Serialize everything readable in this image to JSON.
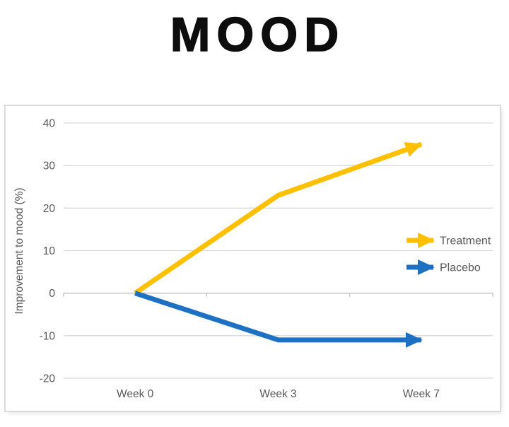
{
  "title": "MOOD",
  "chart_data": {
    "type": "line",
    "title": "MOOD",
    "categories": [
      "Week 0",
      "Week 3",
      "Week 7"
    ],
    "series": [
      {
        "name": "Treatment",
        "values": [
          0,
          23,
          35
        ],
        "color": "#FFC000"
      },
      {
        "name": "Placebo",
        "values": [
          0,
          -11,
          -11
        ],
        "color": "#1D70C2"
      }
    ],
    "xlabel": "",
    "ylabel": "Improvement to mood (%)",
    "ylim": [
      -20,
      40
    ],
    "yticks": [
      40,
      30,
      20,
      10,
      0,
      -10,
      -20
    ],
    "grid": true,
    "legend_position": "middle-right",
    "line_end_style": "arrowhead"
  },
  "legend": {
    "treatment_label": "Treatment",
    "placebo_label": "Placebo"
  },
  "colors": {
    "treatment": "#FFC000",
    "placebo": "#1D70C2",
    "gridline": "#D9D9D9",
    "axis_line": "#BFBFBF",
    "axis_text": "#595959",
    "title_text": "#0D0D0D",
    "card_border": "#DBDBDB",
    "background": "#FFFFFF"
  }
}
